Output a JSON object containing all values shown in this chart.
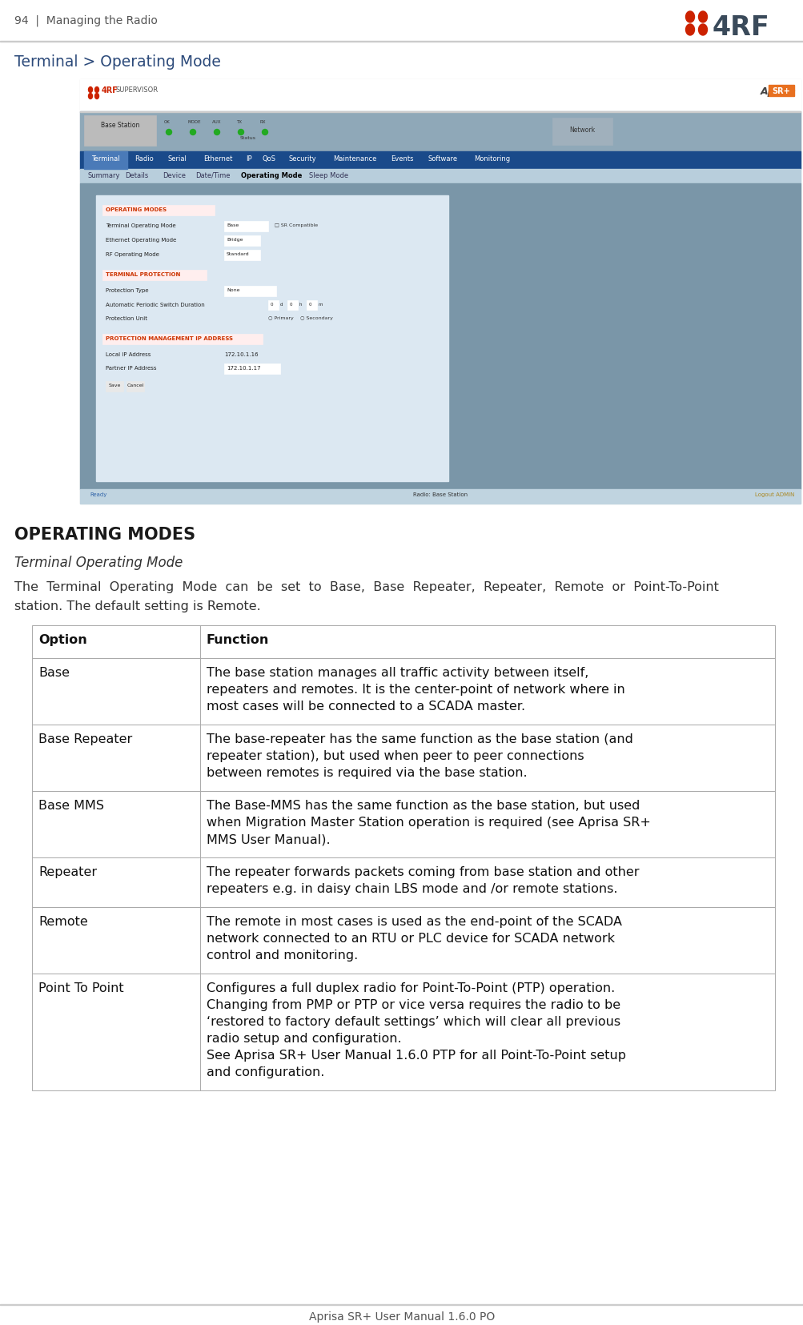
{
  "page_header": "94  |  Managing the Radio",
  "section_title": "Terminal > Operating Mode",
  "heading": "OPERATING MODES",
  "subheading": "Terminal Operating Mode",
  "footer_text": "Aprisa SR+ User Manual 1.6.0 PO",
  "bg_color": "#ffffff",
  "text_color": "#333333",
  "heading_color": "#1a1a1a",
  "table_border_color": "#aaaaaa",
  "ss_outer_bg": "#7a96a8",
  "ss_header_bg": "#ffffff",
  "ss_nav_bg": "#1a4a8a",
  "ss_sub_bg": "#b8cedc",
  "ss_content_bg": "#7a96a8",
  "ss_panel_bg": "#dce8f2",
  "ss_panel_border": "#b0c8d8",
  "ss_status_bg": "#c0d4e0",
  "ss_top_bar_bg": "#8fa8b8",
  "section_red": "#cc2200",
  "tab_active_bg": "#4a7ab8",
  "intro_line1": "The  Terminal  Operating  Mode  can  be  set  to  Base,  Base  Repeater,  Repeater,  Remote  or  Point-To-Point",
  "intro_line2": "station. The default setting is Remote.",
  "table_rows": [
    {
      "option": "Base",
      "lines": [
        "The base station manages all traffic activity between itself,",
        "repeaters and remotes. It is the center-point of network where in",
        "most cases will be connected to a SCADA master."
      ]
    },
    {
      "option": "Base Repeater",
      "lines": [
        "The base-repeater has the same function as the base station (and",
        "repeater station), but used when peer to peer connections",
        "between remotes is required via the base station."
      ]
    },
    {
      "option": "Base MMS",
      "lines": [
        "The Base-MMS has the same function as the base station, but used",
        "when Migration Master Station operation is required (see Aprisa SR+",
        "MMS User Manual)."
      ]
    },
    {
      "option": "Repeater",
      "lines": [
        "The repeater forwards packets coming from base station and other",
        "repeaters e.g. in daisy chain LBS mode and /or remote stations."
      ]
    },
    {
      "option": "Remote",
      "lines": [
        "The remote in most cases is used as the end-point of the SCADA",
        "network connected to an RTU or PLC device for SCADA network",
        "control and monitoring."
      ]
    },
    {
      "option": "Point To Point",
      "lines": [
        "Configures a full duplex radio for Point-To-Point (PTP) operation.",
        "Changing from PMP or PTP or vice versa requires the radio to be",
        "‘restored to factory default settings’ which will clear all previous",
        "radio setup and configuration.",
        "See Aprisa SR+ User Manual 1.6.0 PTP for all Point-To-Point setup",
        "and configuration."
      ]
    }
  ]
}
